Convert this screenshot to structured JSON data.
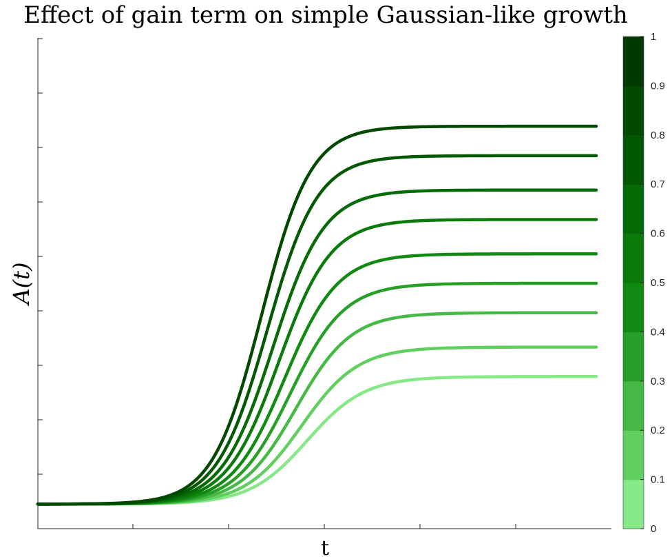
{
  "chart_data": {
    "type": "line",
    "title": "Effect of gain term on simple Gaussian-like growth",
    "xlabel": "t",
    "ylabel": "A(t)",
    "x_range": [
      0,
      1
    ],
    "y_range": [
      0,
      1
    ],
    "x_tick_count": 6,
    "y_tick_count": 9,
    "x_tick_labels_shown": false,
    "y_tick_labels_shown": false,
    "grid": false,
    "series_shape": "sigmoid",
    "series": [
      {
        "gain": 0.1,
        "start": 0.05,
        "plateau": 0.31,
        "midpoint": 0.47,
        "width": 0.11,
        "color": "#86e886"
      },
      {
        "gain": 0.2,
        "start": 0.05,
        "plateau": 0.37,
        "midpoint": 0.46,
        "width": 0.108,
        "color": "#60cf60"
      },
      {
        "gain": 0.3,
        "start": 0.05,
        "plateau": 0.44,
        "midpoint": 0.45,
        "width": 0.106,
        "color": "#45b845"
      },
      {
        "gain": 0.4,
        "start": 0.05,
        "plateau": 0.5,
        "midpoint": 0.44,
        "width": 0.104,
        "color": "#28a028"
      },
      {
        "gain": 0.5,
        "start": 0.05,
        "plateau": 0.56,
        "midpoint": 0.43,
        "width": 0.102,
        "color": "#118a11"
      },
      {
        "gain": 0.6,
        "start": 0.05,
        "plateau": 0.63,
        "midpoint": 0.42,
        "width": 0.1,
        "color": "#0a7a0a"
      },
      {
        "gain": 0.7,
        "start": 0.05,
        "plateau": 0.69,
        "midpoint": 0.41,
        "width": 0.098,
        "color": "#066a06"
      },
      {
        "gain": 0.8,
        "start": 0.05,
        "plateau": 0.76,
        "midpoint": 0.4,
        "width": 0.096,
        "color": "#035903"
      },
      {
        "gain": 0.9,
        "start": 0.05,
        "plateau": 0.82,
        "midpoint": 0.39,
        "width": 0.094,
        "color": "#014801"
      }
    ],
    "colorbar": {
      "range": [
        0,
        1
      ],
      "tick_labels": [
        "0",
        "0.1",
        "0.2",
        "0.3",
        "0.4",
        "0.5",
        "0.6",
        "0.7",
        "0.8",
        "0.9",
        "1"
      ],
      "segment_colors": [
        "#86e886",
        "#60cf60",
        "#45b845",
        "#28a028",
        "#118a11",
        "#0a7a0a",
        "#066a06",
        "#035903",
        "#014801",
        "#003800"
      ]
    }
  }
}
